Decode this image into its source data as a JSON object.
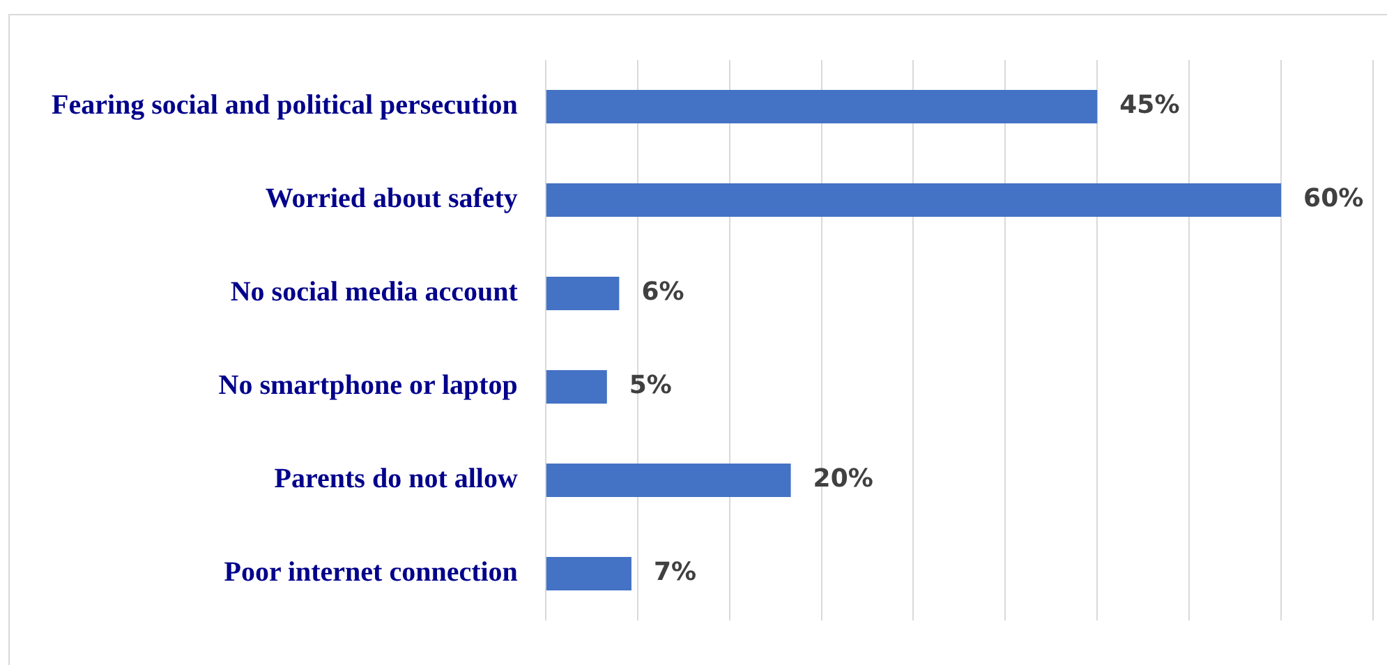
{
  "chart_data": {
    "type": "bar",
    "orientation": "horizontal",
    "categories": [
      "Fearing social and political persecution",
      "Worried about safety",
      "No social media account",
      "No smartphone or laptop",
      "Parents do not allow",
      "Poor internet connection"
    ],
    "values": [
      45,
      60,
      6,
      5,
      20,
      7
    ],
    "value_labels": [
      "45%",
      "60%",
      "6%",
      "5%",
      "20%",
      "7%"
    ],
    "color": "#4472c4",
    "xlim": [
      0,
      67.5
    ],
    "xticks": [
      {
        "value": 0,
        "label": null
      },
      {
        "value": 7.5,
        "label": null
      },
      {
        "value": 15,
        "label": null
      },
      {
        "value": 22.5,
        "label": null
      },
      {
        "value": 30,
        "label": null
      },
      {
        "value": 37.5,
        "label": null
      },
      {
        "value": 45,
        "label": null
      },
      {
        "value": 52.5,
        "label": null
      },
      {
        "value": 60,
        "label": null
      },
      {
        "value": 67.5,
        "label": null
      }
    ],
    "grid": "x",
    "tick_labels": "y",
    "legend": false
  }
}
